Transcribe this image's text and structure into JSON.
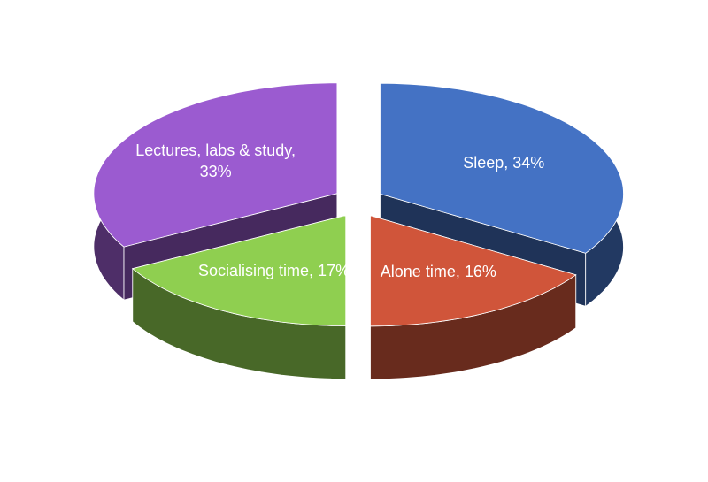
{
  "chart_data": {
    "type": "pie3d",
    "values": [
      34,
      16,
      17,
      33
    ],
    "value_labels": [
      "Sleep, 34%",
      "Alone time, 16%",
      "Socialising time, 17%",
      "Lectures, labs & study, 33%"
    ],
    "colors": [
      "#4472c4",
      "#d0553a",
      "#8fcf50",
      "#9b5bd0"
    ],
    "exploded": true
  }
}
